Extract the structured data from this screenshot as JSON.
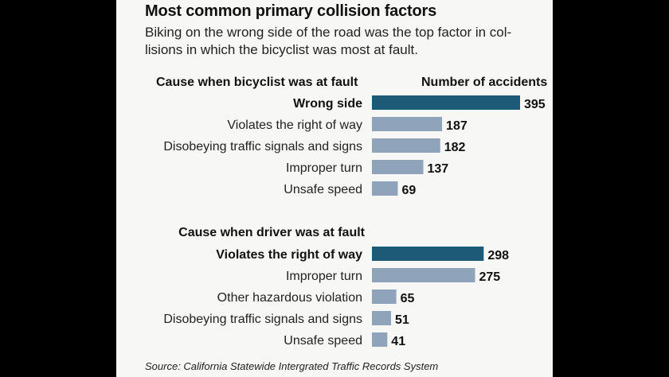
{
  "title": "Most common primary collision factors",
  "subtitle": "Biking on the wrong side of the road was the top factor in col-lisions in which the bicyclist was most at fault.",
  "source": "Source: California Statewide Intergrated Traffic Records System",
  "colors": {
    "highlight": "#1d5a78",
    "normal": "#8fa4ba"
  },
  "chart_data": [
    {
      "type": "bar",
      "orientation": "horizontal",
      "group_label": "Cause when bicyclist was at fault",
      "value_label": "Number of accidents",
      "categories": [
        "Wrong side",
        "Violates the right of way",
        "Disobeying traffic signals and signs",
        "Improper turn",
        "Unsafe speed"
      ],
      "values": [
        395,
        187,
        182,
        137,
        69
      ],
      "highlighted": [
        true,
        false,
        false,
        false,
        false
      ]
    },
    {
      "type": "bar",
      "orientation": "horizontal",
      "group_label": "Cause when driver was at fault",
      "categories": [
        "Violates the right of way",
        "Improper turn",
        "Other hazardous violation",
        "Disobeying traffic signals and signs",
        "Unsafe speed"
      ],
      "values": [
        298,
        275,
        65,
        51,
        41
      ],
      "highlighted": [
        true,
        false,
        false,
        false,
        false
      ]
    }
  ]
}
